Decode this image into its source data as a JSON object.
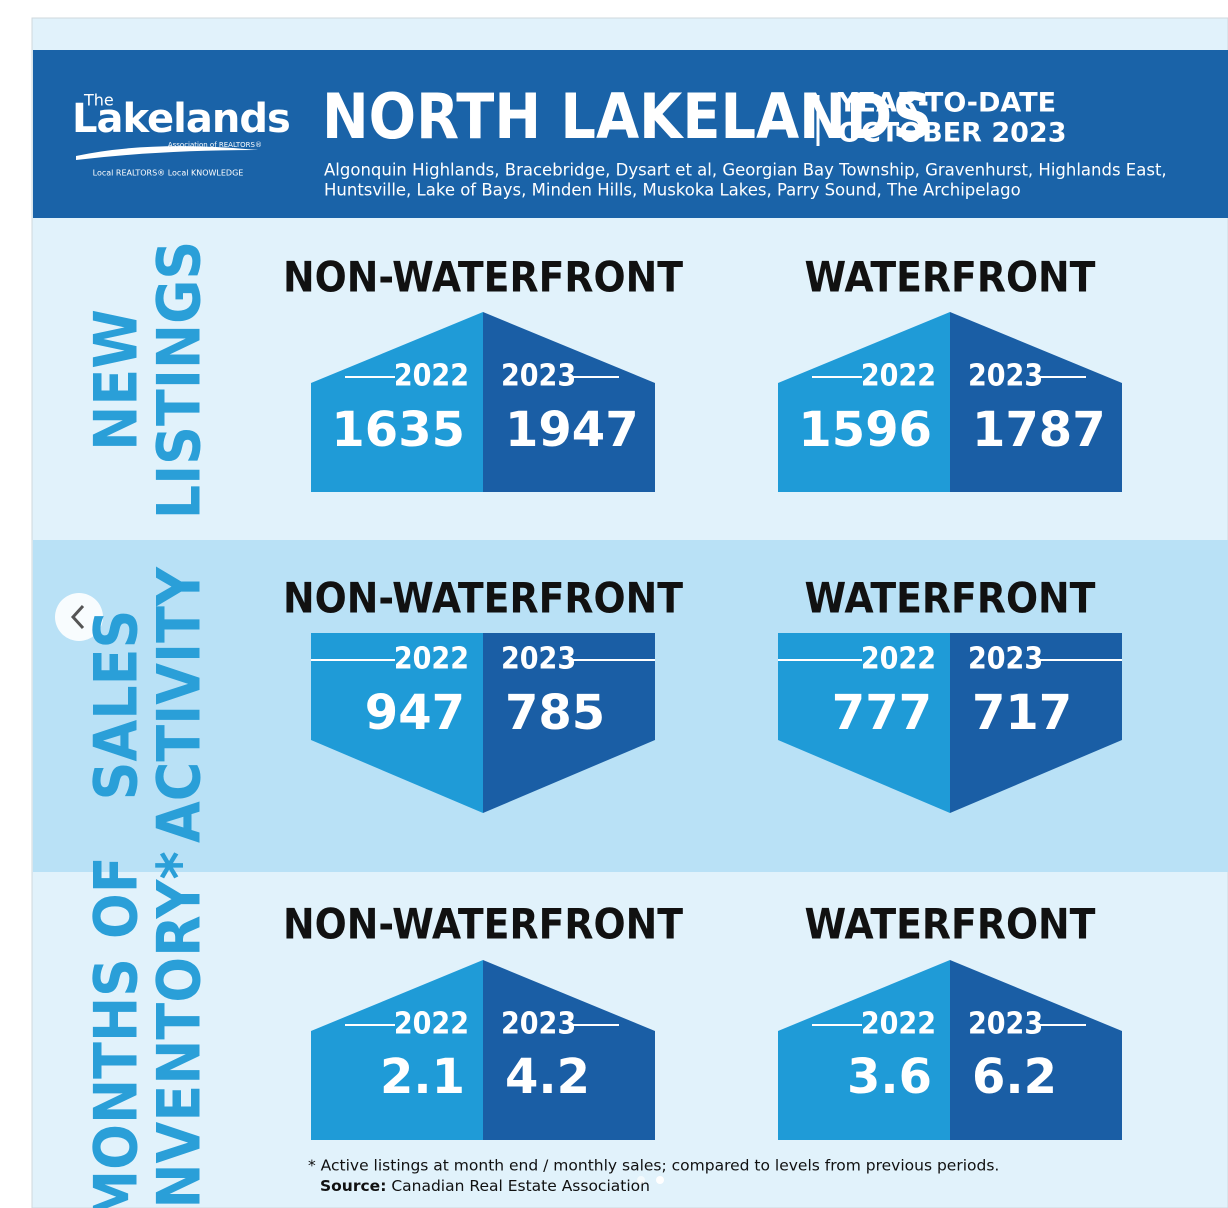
{
  "header": {
    "logo": {
      "the": "The",
      "name": "Lakelands",
      "assoc": "Association of REALTORS®",
      "tagline": "Local REALTORS® Local KNOWLEDGE"
    },
    "title": "NORTH LAKELANDS",
    "period": [
      "YEAR-TO-DATE",
      "OCTOBER 2023"
    ],
    "regions": [
      "Algonquin Highlands, Bracebridge, Dysart et al, Georgian Bay Township, Gravenhurst, Highlands East,",
      "Huntsville, Lake of Bays, Minden Hills, Muskoka Lakes, Parry Sound, The Archipelago"
    ]
  },
  "sections": [
    {
      "label": [
        "NEW",
        "LISTINGS"
      ],
      "shape": "house",
      "cards": [
        {
          "heading": "NON-WATERFRONT",
          "years": [
            "2022",
            "2023"
          ],
          "values": [
            1635,
            1947
          ]
        },
        {
          "heading": "WATERFRONT",
          "years": [
            "2022",
            "2023"
          ],
          "values": [
            1596,
            1787
          ]
        }
      ]
    },
    {
      "label": [
        "SALES",
        "ACTIVITY"
      ],
      "shape": "down",
      "cards": [
        {
          "heading": "NON-WATERFRONT",
          "years": [
            "2022",
            "2023"
          ],
          "values": [
            947,
            785
          ]
        },
        {
          "heading": "WATERFRONT",
          "years": [
            "2022",
            "2023"
          ],
          "values": [
            777,
            717
          ]
        }
      ]
    },
    {
      "label": [
        "MONTHS OF",
        "INVENTORY*"
      ],
      "shape": "house",
      "cards": [
        {
          "heading": "NON-WATERFRONT",
          "years": [
            "2022",
            "2023"
          ],
          "values": [
            2.1,
            4.2
          ]
        },
        {
          "heading": "WATERFRONT",
          "years": [
            "2022",
            "2023"
          ],
          "values": [
            3.6,
            6.2
          ]
        }
      ]
    }
  ],
  "footnote": "* Active listings at month end / monthly sales; compared to levels from previous periods.",
  "source": {
    "label": "Source:",
    "text": "Canadian Real Estate Association"
  }
}
